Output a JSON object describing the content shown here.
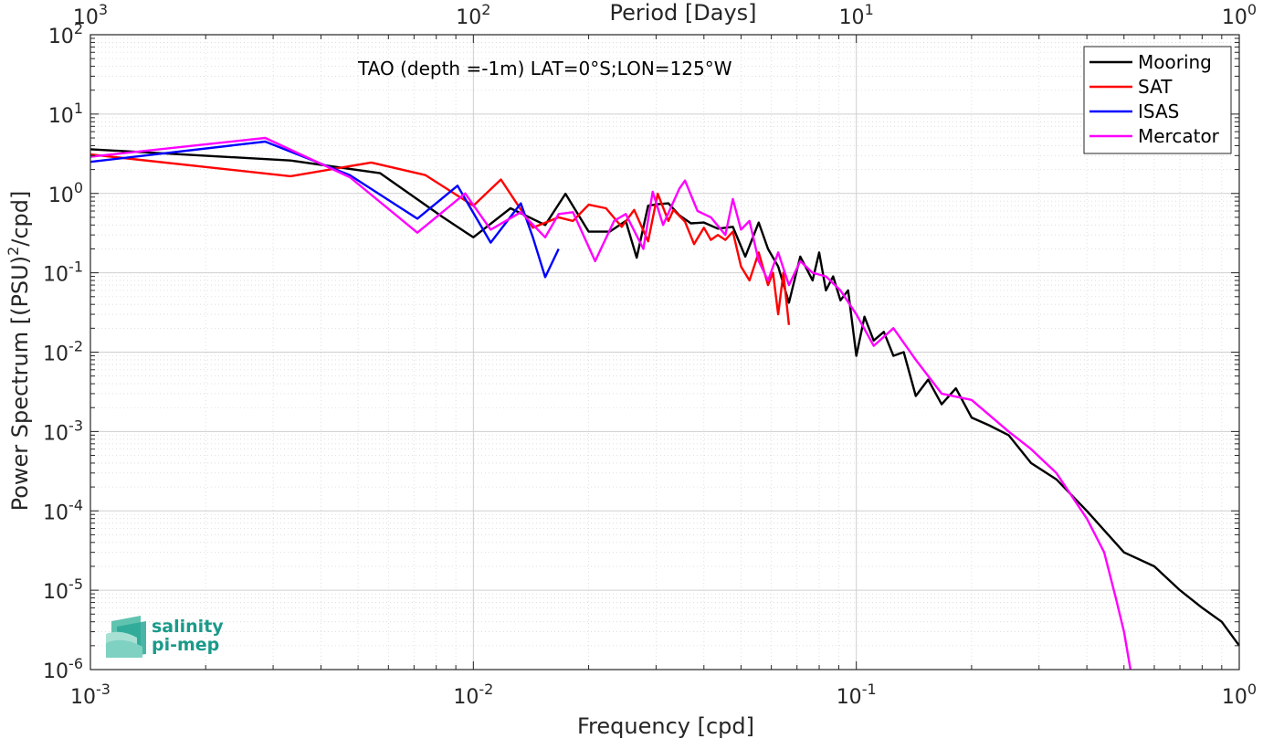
{
  "chart_data": {
    "type": "line",
    "title": "",
    "annotation": "TAO (depth =-1m) LAT=0°S;LON=125°W",
    "xlabel": "Frequency [cpd]",
    "ylabel": "Power Spectrum [(PSU)",
    "ylabel_sup": "2",
    "ylabel_tail": "/cpd]",
    "top_xlabel": "Period [Days]",
    "x_scale": "log",
    "y_scale": "log",
    "xlim": [
      0.001,
      1
    ],
    "ylim": [
      1e-06,
      100
    ],
    "grid": true,
    "minor_grid": true,
    "legend_position": "top-right",
    "x_ticks": [
      {
        "value": 0.001,
        "base": "10",
        "exp": "-3"
      },
      {
        "value": 0.01,
        "base": "10",
        "exp": "-2"
      },
      {
        "value": 0.1,
        "base": "10",
        "exp": "-1"
      },
      {
        "value": 1,
        "base": "10",
        "exp": "0"
      }
    ],
    "top_ticks": [
      {
        "value": 0.001,
        "base": "10",
        "exp": "3"
      },
      {
        "value": 0.01,
        "base": "10",
        "exp": "2"
      },
      {
        "value": 0.1,
        "base": "10",
        "exp": "1"
      },
      {
        "value": 1,
        "base": "10",
        "exp": "0"
      }
    ],
    "y_ticks": [
      {
        "value": 100,
        "base": "10",
        "exp": "2"
      },
      {
        "value": 10,
        "base": "10",
        "exp": "1"
      },
      {
        "value": 1,
        "base": "10",
        "exp": "0"
      },
      {
        "value": 0.1,
        "base": "10",
        "exp": "-1"
      },
      {
        "value": 0.01,
        "base": "10",
        "exp": "-2"
      },
      {
        "value": 0.001,
        "base": "10",
        "exp": "-3"
      },
      {
        "value": 0.0001,
        "base": "10",
        "exp": "-4"
      },
      {
        "value": 1e-05,
        "base": "10",
        "exp": "-5"
      },
      {
        "value": 1e-06,
        "base": "10",
        "exp": "-6"
      }
    ],
    "series": [
      {
        "name": "Mooring",
        "color": "#000000",
        "x": [
          0.001,
          0.00333,
          0.00571,
          0.00833,
          0.01,
          0.0125,
          0.0154,
          0.0174,
          0.02,
          0.0227,
          0.025,
          0.0267,
          0.0286,
          0.0303,
          0.0323,
          0.0345,
          0.037,
          0.04,
          0.0435,
          0.0476,
          0.0513,
          0.0556,
          0.0588,
          0.0625,
          0.0667,
          0.0714,
          0.0769,
          0.08,
          0.0833,
          0.087,
          0.0909,
          0.0952,
          0.1,
          0.105,
          0.111,
          0.118,
          0.125,
          0.133,
          0.143,
          0.154,
          0.167,
          0.182,
          0.2,
          0.222,
          0.25,
          0.286,
          0.333,
          0.4,
          0.5,
          0.6,
          0.7,
          0.8,
          0.9,
          1.0
        ],
        "y": [
          3.6,
          2.6,
          1.8,
          0.5,
          0.28,
          0.65,
          0.4,
          0.99,
          0.33,
          0.33,
          0.45,
          0.155,
          0.7,
          0.73,
          0.75,
          0.53,
          0.42,
          0.43,
          0.36,
          0.38,
          0.16,
          0.43,
          0.2,
          0.12,
          0.042,
          0.16,
          0.08,
          0.18,
          0.06,
          0.09,
          0.045,
          0.06,
          0.009,
          0.028,
          0.014,
          0.018,
          0.009,
          0.01,
          0.0028,
          0.0045,
          0.0022,
          0.0035,
          0.0015,
          0.0012,
          0.0009,
          0.0004,
          0.00025,
          0.0001,
          3e-05,
          2e-05,
          1e-05,
          6e-06,
          4e-06,
          2e-06
        ]
      },
      {
        "name": "SAT",
        "color": "#ff0000",
        "x": [
          0.001,
          0.00333,
          0.00541,
          0.0075,
          0.01,
          0.0118,
          0.0143,
          0.0167,
          0.0182,
          0.02,
          0.0222,
          0.0244,
          0.0263,
          0.0286,
          0.0303,
          0.0323,
          0.0333,
          0.0357,
          0.0377,
          0.04,
          0.0417,
          0.0435,
          0.0455,
          0.0476,
          0.05,
          0.0526,
          0.0556,
          0.0588,
          0.0606,
          0.0625,
          0.0645,
          0.0667
        ],
        "y": [
          3.1,
          1.65,
          2.45,
          1.7,
          0.7,
          1.5,
          0.37,
          0.5,
          0.45,
          0.72,
          0.65,
          0.38,
          0.62,
          0.25,
          0.99,
          0.45,
          0.62,
          0.44,
          0.23,
          0.37,
          0.26,
          0.3,
          0.26,
          0.33,
          0.12,
          0.08,
          0.18,
          0.07,
          0.1,
          0.03,
          0.1,
          0.022
        ]
      },
      {
        "name": "ISAS",
        "color": "#0000ff",
        "x": [
          0.001,
          0.00286,
          0.00476,
          0.00714,
          0.00909,
          0.0111,
          0.0133,
          0.0143,
          0.0154,
          0.0167
        ],
        "y": [
          2.5,
          4.5,
          1.7,
          0.48,
          1.25,
          0.24,
          0.75,
          0.28,
          0.088,
          0.2
        ]
      },
      {
        "name": "Mercator",
        "color": "#ff00ff",
        "x": [
          0.001,
          0.00286,
          0.00476,
          0.00714,
          0.00952,
          0.0111,
          0.0133,
          0.0154,
          0.0167,
          0.0182,
          0.0208,
          0.0233,
          0.025,
          0.0278,
          0.0294,
          0.0313,
          0.0345,
          0.0357,
          0.0385,
          0.0417,
          0.0455,
          0.0476,
          0.05,
          0.0526,
          0.0556,
          0.0588,
          0.0625,
          0.0667,
          0.0714,
          0.0769,
          0.0833,
          0.0909,
          0.1,
          0.111,
          0.125,
          0.143,
          0.167,
          0.2,
          0.25,
          0.286,
          0.333,
          0.4,
          0.444,
          0.476,
          0.5,
          0.52
        ],
        "y": [
          2.9,
          5.0,
          1.6,
          0.32,
          1.0,
          0.35,
          0.58,
          0.28,
          0.55,
          0.58,
          0.14,
          0.45,
          0.55,
          0.2,
          1.05,
          0.4,
          1.15,
          1.45,
          0.6,
          0.5,
          0.3,
          0.85,
          0.35,
          0.45,
          0.14,
          0.08,
          0.18,
          0.07,
          0.14,
          0.1,
          0.09,
          0.06,
          0.03,
          0.012,
          0.02,
          0.008,
          0.003,
          0.0025,
          0.001,
          0.0006,
          0.0003,
          8e-05,
          3e-05,
          8e-06,
          3e-06,
          1e-06
        ]
      }
    ]
  },
  "logo": {
    "line1": "salinity",
    "line2": "pi-mep"
  }
}
